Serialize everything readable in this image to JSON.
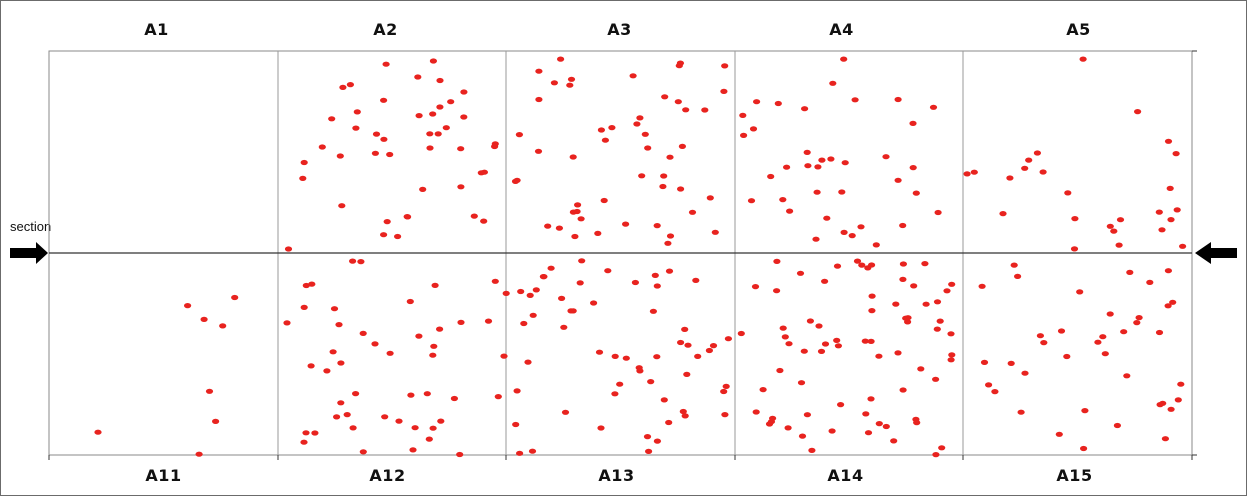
{
  "figure": {
    "top_labels": [
      "A1",
      "A2",
      "A3",
      "A4",
      "A5"
    ],
    "bottom_labels": [
      "A11",
      "A12",
      "A13",
      "A14",
      "A15"
    ],
    "section_label": "section",
    "colors": {
      "point": "#e8231f",
      "grid": "#9a9a9a",
      "axis": "#333333",
      "arrow": "#000000"
    },
    "icons": {
      "left_arrow": "right-pointing-block-arrow",
      "right_arrow": "left-pointing-block-arrow"
    }
  },
  "chart_data": {
    "type": "scatter",
    "series": [
      {
        "values": [
          [
            0.55,
            0.76
          ],
          [
            1.0,
            0.85
          ],
          [
            0.58,
            0.97
          ],
          [
            0.95,
            0.98
          ],
          [
            1.03,
            0.66
          ],
          [
            0.42,
            0.4
          ],
          [
            0.41,
            0.43
          ],
          [
            0.44,
            0.23
          ],
          [
            0.22,
            0.51
          ],
          [
            0.43,
            0.68
          ],
          [
            0.71,
            0.73
          ],
          [
            0.78,
            0.68
          ],
          [
            0.67,
            0.87
          ],
          [
            0.72,
            0.92
          ],
          [
            0.73,
            0.98
          ],
          [
            0.47,
            0.98
          ],
          [
            0.45,
            0.95
          ],
          [
            0.51,
            0.63
          ],
          [
            0.4,
            0.7
          ],
          [
            0.35,
            0.76
          ],
          [
            0.41,
            0.77
          ],
          [
            0.45,
            0.88
          ],
          [
            0.48,
            0.93
          ],
          [
            0.34,
            0.84
          ],
          [
            0.27,
            0.91
          ],
          [
            0.85,
            0.7
          ],
          [
            0.76,
            0.52
          ],
          [
            0.62,
            0.9
          ],
          [
            0.9,
            0.73
          ],
          [
            0.78,
            0.88
          ]
        ]
      }
    ]
  }
}
